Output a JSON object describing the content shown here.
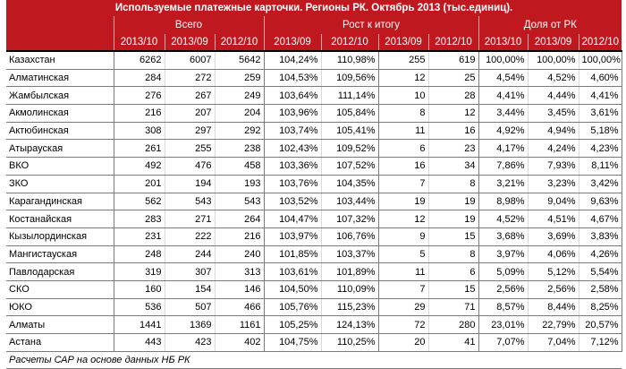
{
  "title": "Используемые платежные карточки. Регионы РК. Октябрь 2013 (тыс.единиц).",
  "groups": {
    "total": "Всего",
    "growth": "Рост к итогу",
    "share": "Доля от РК"
  },
  "subheaders": [
    "2013/10",
    "2013/09",
    "2012/10",
    "2013/09",
    "2012/10",
    "2013/09",
    "2012/10",
    "2013/10",
    "2013/09",
    "2012/10"
  ],
  "rows": [
    {
      "region": "Казахстан",
      "v": [
        "6262",
        "6007",
        "5642",
        "104,24%",
        "110,98%",
        "255",
        "619",
        "100,00%",
        "100,00%",
        "100,00%"
      ]
    },
    {
      "region": "Алматинская",
      "v": [
        "284",
        "272",
        "259",
        "104,53%",
        "109,56%",
        "12",
        "25",
        "4,54%",
        "4,52%",
        "4,60%"
      ]
    },
    {
      "region": "Жамбылская",
      "v": [
        "276",
        "267",
        "249",
        "103,64%",
        "111,14%",
        "10",
        "28",
        "4,41%",
        "4,44%",
        "4,41%"
      ]
    },
    {
      "region": "Акмолинская",
      "v": [
        "216",
        "207",
        "204",
        "103,96%",
        "105,84%",
        "8",
        "12",
        "3,44%",
        "3,45%",
        "3,61%"
      ]
    },
    {
      "region": "Актюбинская",
      "v": [
        "308",
        "297",
        "292",
        "103,74%",
        "105,41%",
        "11",
        "16",
        "4,92%",
        "4,94%",
        "5,18%"
      ]
    },
    {
      "region": "Атырауская",
      "v": [
        "261",
        "255",
        "238",
        "102,43%",
        "109,52%",
        "6",
        "23",
        "4,17%",
        "4,24%",
        "4,23%"
      ]
    },
    {
      "region": "ВКО",
      "v": [
        "492",
        "476",
        "458",
        "103,36%",
        "107,52%",
        "16",
        "34",
        "7,86%",
        "7,93%",
        "8,11%"
      ]
    },
    {
      "region": "ЗКО",
      "v": [
        "201",
        "194",
        "193",
        "103,76%",
        "104,35%",
        "7",
        "8",
        "3,21%",
        "3,23%",
        "3,42%"
      ]
    },
    {
      "region": "Карагандинская",
      "v": [
        "562",
        "543",
        "543",
        "103,52%",
        "103,44%",
        "19",
        "19",
        "8,98%",
        "9,04%",
        "9,63%"
      ]
    },
    {
      "region": "Костанайская",
      "v": [
        "283",
        "271",
        "264",
        "104,47%",
        "107,32%",
        "12",
        "19",
        "4,52%",
        "4,51%",
        "4,67%"
      ]
    },
    {
      "region": "Кызылординская",
      "v": [
        "231",
        "222",
        "216",
        "103,97%",
        "106,76%",
        "9",
        "15",
        "3,68%",
        "3,69%",
        "3,83%"
      ]
    },
    {
      "region": "Мангистауская",
      "v": [
        "248",
        "244",
        "240",
        "101,85%",
        "103,37%",
        "5",
        "8",
        "3,97%",
        "4,06%",
        "4,26%"
      ]
    },
    {
      "region": "Павлодарская",
      "v": [
        "319",
        "307",
        "313",
        "103,61%",
        "101,89%",
        "11",
        "6",
        "5,09%",
        "5,12%",
        "5,54%"
      ]
    },
    {
      "region": "СКО",
      "v": [
        "160",
        "154",
        "146",
        "104,50%",
        "110,09%",
        "7",
        "15",
        "2,56%",
        "2,56%",
        "2,58%"
      ]
    },
    {
      "region": "ЮКО",
      "v": [
        "536",
        "507",
        "466",
        "105,76%",
        "115,23%",
        "29",
        "71",
        "8,57%",
        "8,44%",
        "8,25%"
      ]
    },
    {
      "region": "Алматы",
      "v": [
        "1441",
        "1369",
        "1161",
        "105,25%",
        "124,13%",
        "72",
        "280",
        "23,01%",
        "22,79%",
        "20,57%"
      ]
    },
    {
      "region": "Астана",
      "v": [
        "443",
        "423",
        "402",
        "104,75%",
        "110,25%",
        "20",
        "41",
        "7,07%",
        "7,04%",
        "7,12%"
      ]
    }
  ],
  "footer": "Расчеты САР на основе данных НБ РК"
}
